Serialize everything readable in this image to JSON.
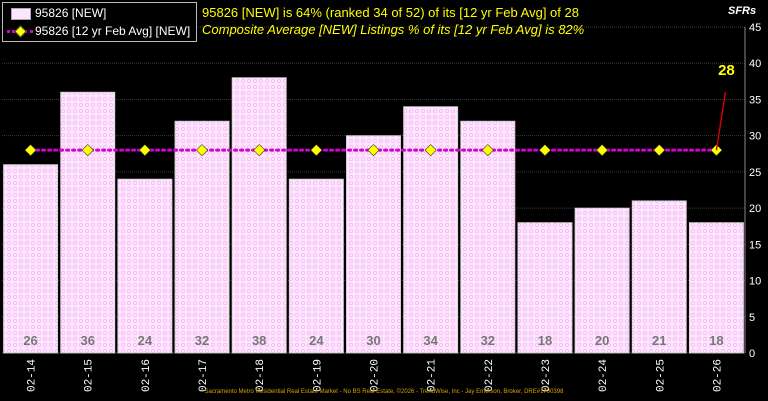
{
  "header": {
    "headline": "95826 [NEW] is 64% (ranked 34 of 52)  of its [12 yr Feb Avg] of 28",
    "subhead": "Composite Average [NEW] Listings % of its [12 yr Feb Avg] is 82%",
    "corner_label": "SFRs"
  },
  "legend": {
    "bar_label": "95826 [NEW]",
    "line_label": "95826 [12 yr Feb Avg] [NEW]"
  },
  "footer": "Sacramento Metro Residential Real Estate Market - No BS Real Estate, ©2026 - TrendWise, Inc - Jay Emerson, Broker, DRE#1780398",
  "colors": {
    "bar_fill": "#fde6fd",
    "line": "#d400d4",
    "marker": "#ffff00",
    "callout": "#ffff00",
    "callout_line": "#cc0000",
    "bar_label": "#777777"
  },
  "chart_data": {
    "type": "bar",
    "categories": [
      "02-14",
      "02-15",
      "02-16",
      "02-17",
      "02-18",
      "02-19",
      "02-20",
      "02-21",
      "02-22",
      "02-23",
      "02-24",
      "02-25",
      "02-26"
    ],
    "series": [
      {
        "name": "95826 [NEW]",
        "type": "bar",
        "values": [
          26,
          36,
          24,
          32,
          38,
          24,
          30,
          34,
          32,
          18,
          20,
          21,
          18
        ]
      },
      {
        "name": "95826 [12 yr Feb Avg] [NEW]",
        "type": "line",
        "values": [
          28,
          28,
          28,
          28,
          28,
          28,
          28,
          28,
          28,
          28,
          28,
          28,
          28
        ]
      }
    ],
    "callout": "28",
    "ylim": [
      0,
      45
    ],
    "yticks": [
      0,
      5,
      10,
      15,
      20,
      25,
      30,
      35,
      40,
      45
    ],
    "grid": true,
    "legend_position": "top-left"
  }
}
